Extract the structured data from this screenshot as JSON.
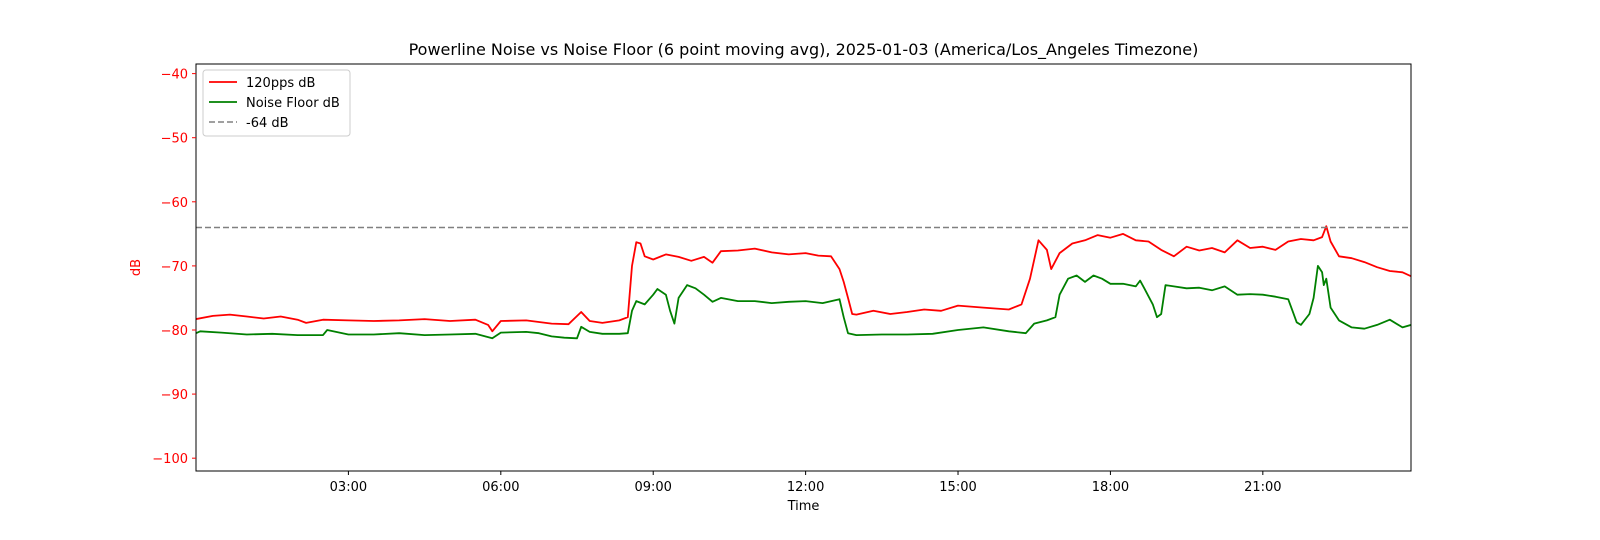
{
  "chart_data": {
    "type": "line",
    "title": "Powerline Noise vs Noise Floor (6 point moving avg), 2025-01-03 (America/Los_Angeles Timezone)",
    "xlabel": "Time",
    "ylabel": "dB",
    "ylabel_color": "#ff0000",
    "ytick_color": "#ff0000",
    "xlim": [
      "00:00",
      "23:55"
    ],
    "ylim": [
      -102,
      -38.5
    ],
    "xticks": [
      "03:00",
      "06:00",
      "09:00",
      "12:00",
      "15:00",
      "18:00",
      "21:00"
    ],
    "yticks": [
      -40,
      -50,
      -60,
      -70,
      -80,
      -90,
      -100
    ],
    "grid": false,
    "legend_position": "top-left",
    "series": [
      {
        "name": "120pps dB",
        "color": "#ff0000",
        "style": "solid",
        "points": [
          [
            "00:00",
            -78.3
          ],
          [
            "00:20",
            -77.8
          ],
          [
            "00:40",
            -77.6
          ],
          [
            "01:00",
            -77.9
          ],
          [
            "01:20",
            -78.2
          ],
          [
            "01:40",
            -77.9
          ],
          [
            "02:00",
            -78.4
          ],
          [
            "02:10",
            -78.9
          ],
          [
            "02:30",
            -78.4
          ],
          [
            "03:00",
            -78.5
          ],
          [
            "03:30",
            -78.6
          ],
          [
            "04:00",
            -78.5
          ],
          [
            "04:30",
            -78.3
          ],
          [
            "05:00",
            -78.6
          ],
          [
            "05:30",
            -78.4
          ],
          [
            "05:45",
            -79.2
          ],
          [
            "05:50",
            -80.2
          ],
          [
            "06:00",
            -78.6
          ],
          [
            "06:30",
            -78.5
          ],
          [
            "07:00",
            -79.0
          ],
          [
            "07:20",
            -79.1
          ],
          [
            "07:35",
            -77.2
          ],
          [
            "07:45",
            -78.6
          ],
          [
            "08:00",
            -78.9
          ],
          [
            "08:20",
            -78.5
          ],
          [
            "08:30",
            -78.0
          ],
          [
            "08:35",
            -70.0
          ],
          [
            "08:40",
            -66.3
          ],
          [
            "08:45",
            -66.5
          ],
          [
            "08:50",
            -68.5
          ],
          [
            "09:00",
            -69.0
          ],
          [
            "09:15",
            -68.2
          ],
          [
            "09:30",
            -68.6
          ],
          [
            "09:45",
            -69.2
          ],
          [
            "10:00",
            -68.6
          ],
          [
            "10:10",
            -69.5
          ],
          [
            "10:20",
            -67.7
          ],
          [
            "10:40",
            -67.6
          ],
          [
            "11:00",
            -67.3
          ],
          [
            "11:20",
            -67.9
          ],
          [
            "11:40",
            -68.2
          ],
          [
            "12:00",
            -68.0
          ],
          [
            "12:15",
            -68.4
          ],
          [
            "12:30",
            -68.5
          ],
          [
            "12:40",
            -70.5
          ],
          [
            "12:45",
            -72.5
          ],
          [
            "12:50",
            -75.0
          ],
          [
            "12:55",
            -77.5
          ],
          [
            "13:00",
            -77.6
          ],
          [
            "13:20",
            -77.0
          ],
          [
            "13:40",
            -77.5
          ],
          [
            "14:00",
            -77.2
          ],
          [
            "14:20",
            -76.8
          ],
          [
            "14:40",
            -77.0
          ],
          [
            "15:00",
            -76.2
          ],
          [
            "15:30",
            -76.5
          ],
          [
            "16:00",
            -76.8
          ],
          [
            "16:15",
            -76.0
          ],
          [
            "16:25",
            -72.0
          ],
          [
            "16:35",
            -66.0
          ],
          [
            "16:45",
            -67.5
          ],
          [
            "16:50",
            -70.5
          ],
          [
            "17:00",
            -68.0
          ],
          [
            "17:15",
            -66.5
          ],
          [
            "17:30",
            -66.0
          ],
          [
            "17:45",
            -65.2
          ],
          [
            "18:00",
            -65.6
          ],
          [
            "18:15",
            -65.0
          ],
          [
            "18:30",
            -66.0
          ],
          [
            "18:45",
            -66.2
          ],
          [
            "19:00",
            -67.5
          ],
          [
            "19:15",
            -68.5
          ],
          [
            "19:30",
            -67.0
          ],
          [
            "19:45",
            -67.6
          ],
          [
            "20:00",
            -67.2
          ],
          [
            "20:15",
            -67.9
          ],
          [
            "20:30",
            -66.0
          ],
          [
            "20:45",
            -67.2
          ],
          [
            "21:00",
            -67.0
          ],
          [
            "21:15",
            -67.5
          ],
          [
            "21:30",
            -66.2
          ],
          [
            "21:45",
            -65.8
          ],
          [
            "22:00",
            -66.0
          ],
          [
            "22:10",
            -65.5
          ],
          [
            "22:15",
            -63.8
          ],
          [
            "22:20",
            -66.2
          ],
          [
            "22:30",
            -68.5
          ],
          [
            "22:45",
            -68.8
          ],
          [
            "23:00",
            -69.4
          ],
          [
            "23:15",
            -70.2
          ],
          [
            "23:30",
            -70.8
          ],
          [
            "23:45",
            -71.0
          ],
          [
            "23:55",
            -71.6
          ]
        ]
      },
      {
        "name": "Noise Floor dB",
        "color": "#008000",
        "style": "solid",
        "points": [
          [
            "00:00",
            -80.5
          ],
          [
            "00:05",
            -80.2
          ],
          [
            "00:30",
            -80.4
          ],
          [
            "01:00",
            -80.7
          ],
          [
            "01:30",
            -80.6
          ],
          [
            "02:00",
            -80.8
          ],
          [
            "02:30",
            -80.8
          ],
          [
            "02:35",
            -80.0
          ],
          [
            "03:00",
            -80.7
          ],
          [
            "03:30",
            -80.7
          ],
          [
            "04:00",
            -80.5
          ],
          [
            "04:30",
            -80.8
          ],
          [
            "05:00",
            -80.7
          ],
          [
            "05:30",
            -80.6
          ],
          [
            "05:50",
            -81.3
          ],
          [
            "06:00",
            -80.4
          ],
          [
            "06:30",
            -80.3
          ],
          [
            "06:45",
            -80.5
          ],
          [
            "07:00",
            -81.0
          ],
          [
            "07:15",
            -81.2
          ],
          [
            "07:30",
            -81.3
          ],
          [
            "07:35",
            -79.5
          ],
          [
            "07:45",
            -80.3
          ],
          [
            "08:00",
            -80.6
          ],
          [
            "08:20",
            -80.6
          ],
          [
            "08:30",
            -80.5
          ],
          [
            "08:35",
            -77.0
          ],
          [
            "08:40",
            -75.5
          ],
          [
            "08:50",
            -76.0
          ],
          [
            "09:00",
            -74.5
          ],
          [
            "09:05",
            -73.6
          ],
          [
            "09:15",
            -74.5
          ],
          [
            "09:20",
            -77.0
          ],
          [
            "09:25",
            -79.0
          ],
          [
            "09:30",
            -75.0
          ],
          [
            "09:40",
            -73.0
          ],
          [
            "09:50",
            -73.5
          ],
          [
            "10:00",
            -74.5
          ],
          [
            "10:10",
            -75.6
          ],
          [
            "10:20",
            -75.0
          ],
          [
            "10:40",
            -75.5
          ],
          [
            "11:00",
            -75.5
          ],
          [
            "11:20",
            -75.8
          ],
          [
            "11:40",
            -75.6
          ],
          [
            "12:00",
            -75.5
          ],
          [
            "12:20",
            -75.8
          ],
          [
            "12:40",
            -75.2
          ],
          [
            "12:45",
            -78.0
          ],
          [
            "12:50",
            -80.5
          ],
          [
            "13:00",
            -80.8
          ],
          [
            "13:30",
            -80.7
          ],
          [
            "14:00",
            -80.7
          ],
          [
            "14:30",
            -80.6
          ],
          [
            "15:00",
            -80.0
          ],
          [
            "15:30",
            -79.6
          ],
          [
            "16:00",
            -80.2
          ],
          [
            "16:20",
            -80.5
          ],
          [
            "16:30",
            -79.0
          ],
          [
            "16:45",
            -78.5
          ],
          [
            "16:55",
            -78.0
          ],
          [
            "17:00",
            -74.5
          ],
          [
            "17:10",
            -72.0
          ],
          [
            "17:20",
            -71.5
          ],
          [
            "17:30",
            -72.5
          ],
          [
            "17:40",
            -71.5
          ],
          [
            "17:50",
            -72.0
          ],
          [
            "18:00",
            -72.8
          ],
          [
            "18:15",
            -72.8
          ],
          [
            "18:30",
            -73.2
          ],
          [
            "18:35",
            -72.3
          ],
          [
            "18:40",
            -73.5
          ],
          [
            "18:50",
            -76.0
          ],
          [
            "18:55",
            -78.0
          ],
          [
            "19:00",
            -77.5
          ],
          [
            "19:05",
            -73.0
          ],
          [
            "19:15",
            -73.2
          ],
          [
            "19:30",
            -73.5
          ],
          [
            "19:45",
            -73.4
          ],
          [
            "20:00",
            -73.8
          ],
          [
            "20:15",
            -73.2
          ],
          [
            "20:30",
            -74.5
          ],
          [
            "20:45",
            -74.4
          ],
          [
            "21:00",
            -74.5
          ],
          [
            "21:15",
            -74.8
          ],
          [
            "21:30",
            -75.2
          ],
          [
            "21:35",
            -77.0
          ],
          [
            "21:40",
            -78.8
          ],
          [
            "21:45",
            -79.2
          ],
          [
            "21:55",
            -77.5
          ],
          [
            "22:00",
            -75.0
          ],
          [
            "22:05",
            -70.0
          ],
          [
            "22:10",
            -71.0
          ],
          [
            "22:12",
            -73.0
          ],
          [
            "22:15",
            -72.0
          ],
          [
            "22:20",
            -76.5
          ],
          [
            "22:30",
            -78.5
          ],
          [
            "22:45",
            -79.6
          ],
          [
            "23:00",
            -79.8
          ],
          [
            "23:15",
            -79.2
          ],
          [
            "23:30",
            -78.4
          ],
          [
            "23:45",
            -79.6
          ],
          [
            "23:55",
            -79.2
          ]
        ]
      },
      {
        "name": "-64 dB",
        "color": "#808080",
        "style": "dashed",
        "value": -64
      }
    ]
  }
}
